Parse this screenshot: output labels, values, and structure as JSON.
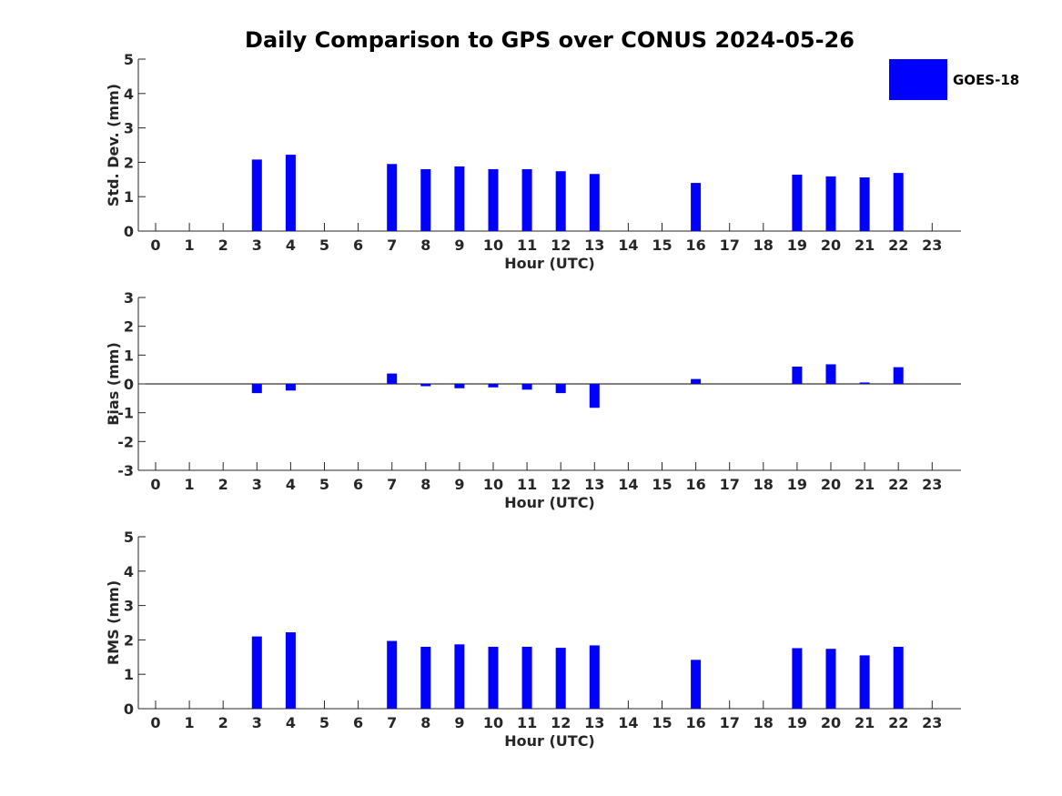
{
  "title": "Daily Comparison to GPS over CONUS 2024-05-26",
  "colors": {
    "bar": "#0000ff",
    "axis": "#262626",
    "zero_line": "#000000"
  },
  "legend": {
    "label": "GOES-18",
    "position": "top-right"
  },
  "chart_data": [
    {
      "type": "bar",
      "name": "std-dev",
      "ylabel": "Std. Dev. (mm)",
      "xlabel": "Hour (UTC)",
      "ylim": [
        0,
        5
      ],
      "yticks": [
        0,
        1,
        2,
        3,
        4,
        5
      ],
      "x": [
        0,
        1,
        2,
        3,
        4,
        5,
        6,
        7,
        8,
        9,
        10,
        11,
        12,
        13,
        14,
        15,
        16,
        17,
        18,
        19,
        20,
        21,
        22,
        23
      ],
      "series": [
        {
          "name": "GOES-18",
          "values": [
            null,
            null,
            null,
            2.08,
            2.22,
            null,
            null,
            1.95,
            1.8,
            1.88,
            1.8,
            1.8,
            1.74,
            1.66,
            null,
            null,
            1.4,
            null,
            null,
            1.64,
            1.59,
            1.56,
            1.69,
            null
          ]
        }
      ]
    },
    {
      "type": "bar",
      "name": "bias",
      "ylabel": "Bias (mm)",
      "xlabel": "Hour (UTC)",
      "ylim": [
        -3,
        3
      ],
      "yticks": [
        -3,
        -2,
        -1,
        0,
        1,
        2,
        3
      ],
      "x": [
        0,
        1,
        2,
        3,
        4,
        5,
        6,
        7,
        8,
        9,
        10,
        11,
        12,
        13,
        14,
        15,
        16,
        17,
        18,
        19,
        20,
        21,
        22,
        23
      ],
      "series": [
        {
          "name": "GOES-18",
          "values": [
            null,
            null,
            null,
            -0.32,
            -0.23,
            null,
            null,
            0.36,
            -0.08,
            -0.15,
            -0.12,
            -0.2,
            -0.32,
            -0.83,
            null,
            null,
            0.17,
            null,
            null,
            0.6,
            0.68,
            0.05,
            0.58,
            null
          ]
        }
      ]
    },
    {
      "type": "bar",
      "name": "rms",
      "ylabel": "RMS (mm)",
      "xlabel": "Hour (UTC)",
      "ylim": [
        0,
        5
      ],
      "yticks": [
        0,
        1,
        2,
        3,
        4,
        5
      ],
      "x": [
        0,
        1,
        2,
        3,
        4,
        5,
        6,
        7,
        8,
        9,
        10,
        11,
        12,
        13,
        14,
        15,
        16,
        17,
        18,
        19,
        20,
        21,
        22,
        23
      ],
      "series": [
        {
          "name": "GOES-18",
          "values": [
            null,
            null,
            null,
            2.1,
            2.22,
            null,
            null,
            1.97,
            1.8,
            1.87,
            1.8,
            1.8,
            1.77,
            1.84,
            null,
            null,
            1.42,
            null,
            null,
            1.76,
            1.74,
            1.55,
            1.8,
            null
          ]
        }
      ]
    }
  ]
}
